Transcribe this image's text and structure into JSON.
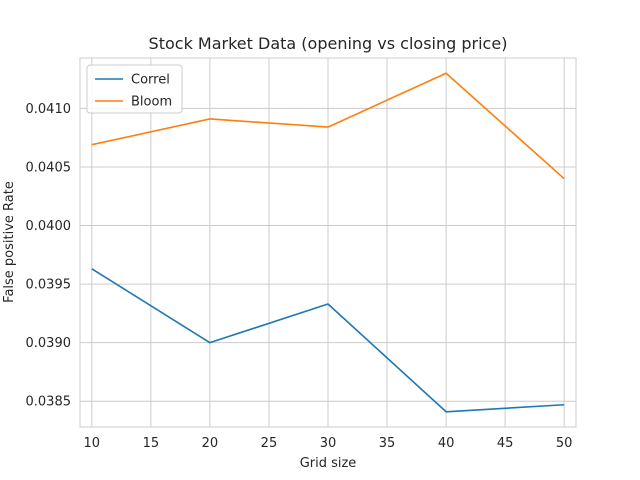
{
  "chart_data": {
    "type": "line",
    "title": "Stock Market Data (opening vs closing price)",
    "xlabel": "Grid size",
    "ylabel": "False positive Rate",
    "x": [
      10,
      20,
      30,
      40,
      50
    ],
    "xticks": [
      10,
      15,
      20,
      25,
      30,
      35,
      40,
      45,
      50
    ],
    "yticks": [
      0.0385,
      0.039,
      0.0395,
      0.04,
      0.0405,
      0.041
    ],
    "ytick_labels": [
      "0.0385",
      "0.0390",
      "0.0395",
      "0.0400",
      "0.0405",
      "0.0410"
    ],
    "xlim": [
      9,
      51
    ],
    "ylim": [
      0.03828,
      0.04143
    ],
    "grid": true,
    "legend": "upper-left",
    "series": [
      {
        "name": "Correl",
        "color": "#1f77b4",
        "values": [
          0.03963,
          0.039,
          0.03933,
          0.03841,
          0.03847
        ]
      },
      {
        "name": "Bloom",
        "color": "#ff7f0e",
        "values": [
          0.04069,
          0.04091,
          0.04084,
          0.0413,
          0.0404
        ]
      }
    ]
  }
}
